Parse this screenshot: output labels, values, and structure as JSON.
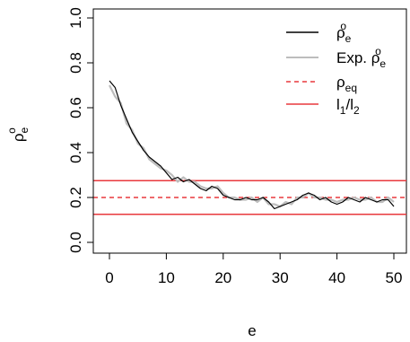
{
  "chart_data": {
    "type": "line",
    "title": "",
    "xlabel": "e",
    "ylabel": {
      "base": "ρ",
      "sup": "o",
      "sub": "e"
    },
    "xlim": [
      0,
      50
    ],
    "ylim": [
      0,
      1
    ],
    "x_ticks": [
      0,
      10,
      20,
      30,
      40,
      50
    ],
    "y_ticks": [
      0.0,
      0.2,
      0.4,
      0.6,
      0.8,
      1.0
    ],
    "x_tick_labels": [
      "0",
      "10",
      "20",
      "30",
      "40",
      "50"
    ],
    "y_tick_labels": [
      "0.0",
      "0.2",
      "0.4",
      "0.6",
      "0.8",
      "1.0"
    ],
    "grid": false,
    "legend_position": "top-right",
    "legend": [
      {
        "base": "ρ",
        "sub": "e",
        "sup": "o",
        "color": "#000000",
        "style": "solid"
      },
      {
        "base": "Exp. ρ",
        "sub": "e",
        "sup": "o",
        "color": "#bdbdbd",
        "style": "solid"
      },
      {
        "base": "ρ",
        "sub": "eq",
        "sup": "",
        "color": "#e8383d",
        "style": "dashed"
      },
      {
        "base": "l",
        "sub": "1",
        "mid": "/l",
        "sub2": "2",
        "color": "#e8383d",
        "style": "solid"
      }
    ],
    "series": [
      {
        "color": "#000000",
        "x": [
          0,
          1,
          2,
          3,
          4,
          5,
          6,
          7,
          8,
          9,
          10,
          11,
          12,
          13,
          14,
          15,
          16,
          17,
          18,
          19,
          20,
          21,
          22,
          23,
          24,
          25,
          26,
          27,
          28,
          29,
          30,
          31,
          32,
          33,
          34,
          35,
          36,
          37,
          38,
          39,
          40,
          41,
          42,
          43,
          44,
          45,
          46,
          47,
          48,
          49,
          50
        ],
        "values": [
          0.72,
          0.69,
          0.61,
          0.55,
          0.49,
          0.45,
          0.41,
          0.38,
          0.36,
          0.34,
          0.31,
          0.28,
          0.29,
          0.27,
          0.28,
          0.26,
          0.24,
          0.23,
          0.25,
          0.24,
          0.21,
          0.2,
          0.19,
          0.19,
          0.2,
          0.19,
          0.19,
          0.2,
          0.18,
          0.15,
          0.16,
          0.17,
          0.18,
          0.19,
          0.21,
          0.22,
          0.21,
          0.19,
          0.2,
          0.18,
          0.17,
          0.18,
          0.2,
          0.19,
          0.18,
          0.2,
          0.19,
          0.18,
          0.19,
          0.19,
          0.16
        ]
      },
      {
        "color": "#bdbdbd",
        "x": [
          0,
          1,
          2,
          3,
          4,
          5,
          6,
          7,
          8,
          9,
          10,
          11,
          12,
          13,
          14,
          15,
          16,
          17,
          18,
          19,
          20,
          21,
          22,
          23,
          24,
          25,
          26,
          27,
          28,
          29,
          30,
          31,
          32,
          33,
          34,
          35,
          36,
          37,
          38,
          39,
          40,
          41,
          42,
          43,
          44,
          45,
          46,
          47,
          48,
          49,
          50
        ],
        "values": [
          0.7,
          0.65,
          0.62,
          0.53,
          0.5,
          0.44,
          0.42,
          0.37,
          0.35,
          0.33,
          0.32,
          0.3,
          0.27,
          0.29,
          0.27,
          0.27,
          0.25,
          0.24,
          0.24,
          0.25,
          0.22,
          0.2,
          0.2,
          0.19,
          0.19,
          0.2,
          0.18,
          0.2,
          0.17,
          0.17,
          0.16,
          0.18,
          0.17,
          0.2,
          0.2,
          0.22,
          0.2,
          0.2,
          0.19,
          0.19,
          0.18,
          0.19,
          0.19,
          0.2,
          0.19,
          0.19,
          0.2,
          0.18,
          0.18,
          0.2,
          0.18
        ]
      }
    ],
    "hlines": [
      {
        "y": 0.2,
        "color": "#e8383d",
        "style": "dashed"
      },
      {
        "y": 0.275,
        "color": "#e8383d",
        "style": "solid"
      },
      {
        "y": 0.125,
        "color": "#e8383d",
        "style": "solid"
      }
    ]
  }
}
